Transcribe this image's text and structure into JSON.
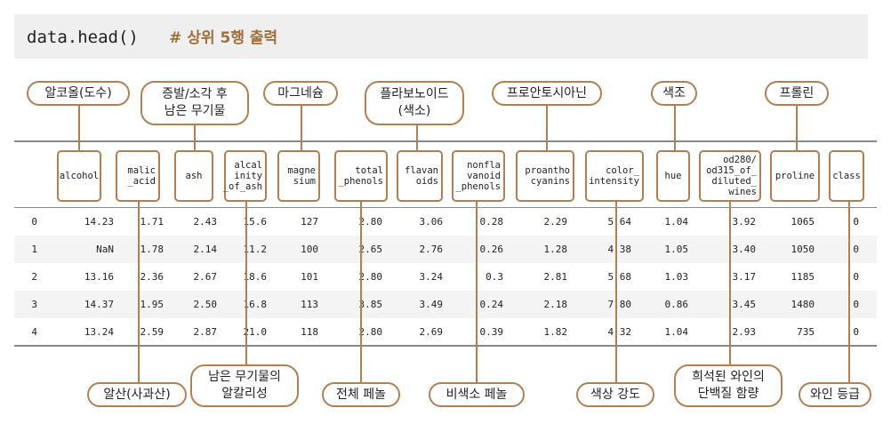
{
  "code": {
    "text": "data.head()",
    "comment": "# 상위 5행 출력"
  },
  "top_labels": [
    "알코올(도수)",
    "증발/소각 후\n남은 무기물",
    "마그네슘",
    "플라보노이드\n(색소)",
    "프로안토시아닌",
    "색조",
    "프롤린"
  ],
  "bottom_labels": [
    "알산(사과산)",
    "남은 무기물의\n알칼리성",
    "전체 페놀",
    "비색소 페놀",
    "색상 강도",
    "희석된 와인의\n단백질 함량",
    "와인 등급"
  ],
  "columns": [
    "alcohol",
    "malic\n_acid",
    "ash",
    "alcal\ninity\n_of_ash",
    "magne\nsium",
    "total\n_phenols",
    "flavan\noids",
    "nonfla\nvanoid\n_phenols",
    "proantho\ncyanins",
    "color_\nintensity",
    "hue",
    "od280/\nod315_of_\ndiluted_\nwines",
    "proline",
    "class"
  ],
  "rows": [
    [
      "0",
      "14.23",
      "1.71",
      "2.43",
      "15.6",
      "127",
      "2.80",
      "3.06",
      "0.28",
      "2.29",
      "5.64",
      "1.04",
      "3.92",
      "1065",
      "0"
    ],
    [
      "1",
      "NaN",
      "1.78",
      "2.14",
      "11.2",
      "100",
      "2.65",
      "2.76",
      "0.26",
      "1.28",
      "4.38",
      "1.05",
      "3.40",
      "1050",
      "0"
    ],
    [
      "2",
      "13.16",
      "2.36",
      "2.67",
      "18.6",
      "101",
      "2.80",
      "3.24",
      "0.3",
      "2.81",
      "5.68",
      "1.03",
      "3.17",
      "1185",
      "0"
    ],
    [
      "3",
      "14.37",
      "1.95",
      "2.50",
      "16.8",
      "113",
      "3.85",
      "3.49",
      "0.24",
      "2.18",
      "7.80",
      "0.86",
      "3.45",
      "1480",
      "0"
    ],
    [
      "4",
      "13.24",
      "2.59",
      "2.87",
      "21.0",
      "118",
      "2.80",
      "2.69",
      "0.39",
      "1.82",
      "4.32",
      "1.04",
      "2.93",
      "735",
      "0"
    ]
  ],
  "colors": {
    "accent": "#b08054",
    "code_bg": "#efefef",
    "comment": "#a0703a",
    "row_shade": "#f4f4f4"
  }
}
